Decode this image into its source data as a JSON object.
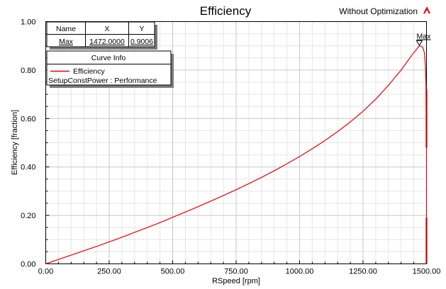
{
  "chart_data": {
    "type": "line",
    "title": "Efficiency",
    "subtitle": "Without Optimization",
    "xlabel": "RSpeed [rpm]",
    "ylabel": "Efficiency [fraction]",
    "xlim": [
      0,
      1500
    ],
    "ylim": [
      0,
      1
    ],
    "x_ticks": [
      "0.00",
      "250.00",
      "500.00",
      "750.00",
      "1000.00",
      "1250.00",
      "1500.00"
    ],
    "y_ticks": [
      "0.00",
      "0.20",
      "0.40",
      "0.60",
      "0.80",
      "1.00"
    ],
    "grid": true,
    "series": [
      {
        "name": "Efficiency",
        "color": "#e8000b",
        "x": [
          0,
          50,
          100,
          150,
          200,
          250,
          300,
          350,
          400,
          450,
          500,
          550,
          600,
          650,
          700,
          750,
          800,
          850,
          900,
          950,
          1000,
          1050,
          1100,
          1150,
          1200,
          1250,
          1300,
          1350,
          1400,
          1440,
          1472,
          1485,
          1492,
          1496,
          1498,
          1499,
          1500,
          1500
        ],
        "y": [
          0.0,
          0.018,
          0.036,
          0.054,
          0.072,
          0.091,
          0.11,
          0.13,
          0.15,
          0.17,
          0.192,
          0.214,
          0.236,
          0.259,
          0.282,
          0.306,
          0.331,
          0.357,
          0.384,
          0.413,
          0.443,
          0.475,
          0.509,
          0.546,
          0.586,
          0.63,
          0.68,
          0.737,
          0.8,
          0.858,
          0.9006,
          0.895,
          0.87,
          0.81,
          0.74,
          0.6,
          0.48,
          0.0
        ]
      }
    ],
    "marker": {
      "label": "Max",
      "x": 1472.0,
      "y": 0.9006
    },
    "marker_table": {
      "headers": [
        "Name",
        "X",
        "Y"
      ],
      "row": [
        "Max",
        "1472.0000",
        "0.9006"
      ]
    },
    "legend": {
      "title": "Curve Info",
      "entry": "Efficiency",
      "sub": "SetupConstPower : Performance",
      "placement": "top-left"
    }
  },
  "icons": {
    "corner_logo": "ansys-logo-icon",
    "logo_color": "#e8000b"
  }
}
